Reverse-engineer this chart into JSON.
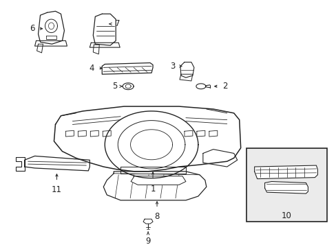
{
  "background_color": "#ffffff",
  "fig_width": 4.89,
  "fig_height": 3.6,
  "dpi": 100,
  "line_color": "#222222",
  "label_fontsize": 8.5
}
